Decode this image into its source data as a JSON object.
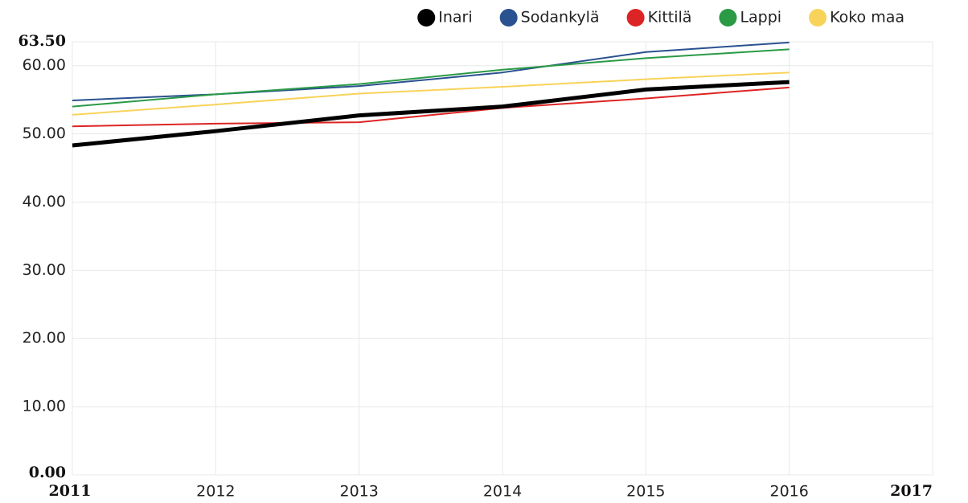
{
  "chart_data": {
    "type": "line",
    "x": [
      2011,
      2012,
      2013,
      2014,
      2015,
      2016
    ],
    "series": [
      {
        "name": "Inari",
        "color": "#000000",
        "line_width": 5,
        "values": [
          48.3,
          50.4,
          52.7,
          54.0,
          56.5,
          57.6
        ]
      },
      {
        "name": "Sodankylä",
        "color": "#2a5190",
        "line_width": 2,
        "values": [
          54.9,
          55.8,
          57.0,
          59.0,
          62.0,
          63.4
        ]
      },
      {
        "name": "Kittilä",
        "color": "#dd2424",
        "line_width": 2,
        "values": [
          51.1,
          51.5,
          51.7,
          53.8,
          55.2,
          56.8
        ]
      },
      {
        "name": "Lappi",
        "color": "#2a9a45",
        "line_width": 2,
        "values": [
          54.0,
          55.8,
          57.3,
          59.4,
          61.1,
          62.4
        ]
      },
      {
        "name": "Koko maa",
        "color": "#f8d35a",
        "line_width": 2,
        "values": [
          52.8,
          54.3,
          55.9,
          56.9,
          58.0,
          59.0
        ]
      }
    ],
    "xlim": [
      2011,
      2017
    ],
    "xticks": [
      2011,
      2012,
      2013,
      2014,
      2015,
      2016,
      2017
    ],
    "ylim": [
      0,
      63.5
    ],
    "yticks": [
      {
        "value": 0,
        "label": "0.00"
      },
      {
        "value": 10,
        "label": "10.00"
      },
      {
        "value": 20,
        "label": "20.00"
      },
      {
        "value": 30,
        "label": "30.00"
      },
      {
        "value": 40,
        "label": "40.00"
      },
      {
        "value": 50,
        "label": "50.00"
      },
      {
        "value": 60,
        "label": "60.00"
      },
      {
        "value": 63.5,
        "label": "63.50"
      }
    ],
    "grid": true,
    "legend": "top-right"
  }
}
